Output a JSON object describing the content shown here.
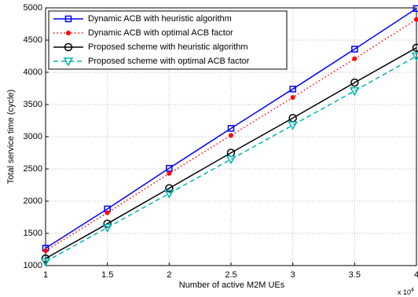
{
  "chart_data": {
    "type": "line",
    "xlabel": "Number of active M2M UEs",
    "ylabel": "Total service time (cycle)",
    "x_scale_label": {
      "base": "x 10",
      "exponent": "4"
    },
    "x": [
      1,
      1.5,
      2,
      2.5,
      3,
      3.5,
      4
    ],
    "xlim": [
      1,
      4
    ],
    "xticks": [
      1,
      1.5,
      2,
      2.5,
      3,
      3.5,
      4
    ],
    "ylim": [
      1000,
      5000
    ],
    "yticks": [
      1000,
      1500,
      2000,
      2500,
      3000,
      3500,
      4000,
      4500,
      5000
    ],
    "grid": true,
    "legend": "upper-left",
    "series": [
      {
        "name": "Dynamic ACB with heuristic algorithm",
        "color": "#0000ff",
        "line_style": "solid",
        "marker": "square",
        "values": [
          1270,
          1880,
          2510,
          3130,
          3740,
          4360,
          4990
        ]
      },
      {
        "name": "Dynamic ACB with optimal ACB factor",
        "color": "#ff0000",
        "line_style": "dotted",
        "marker": "dot",
        "values": [
          1230,
          1820,
          2430,
          3020,
          3610,
          4210,
          4820
        ]
      },
      {
        "name": "Proposed scheme with heuristic algorithm",
        "color": "#000000",
        "line_style": "solid",
        "marker": "circle",
        "values": [
          1110,
          1650,
          2200,
          2750,
          3290,
          3840,
          4380
        ]
      },
      {
        "name": "Proposed scheme with optimal ACB factor",
        "color": "#00b4b4",
        "line_style": "dashed",
        "marker": "triangle-down",
        "values": [
          1060,
          1590,
          2120,
          2650,
          3180,
          3710,
          4250
        ]
      }
    ]
  }
}
